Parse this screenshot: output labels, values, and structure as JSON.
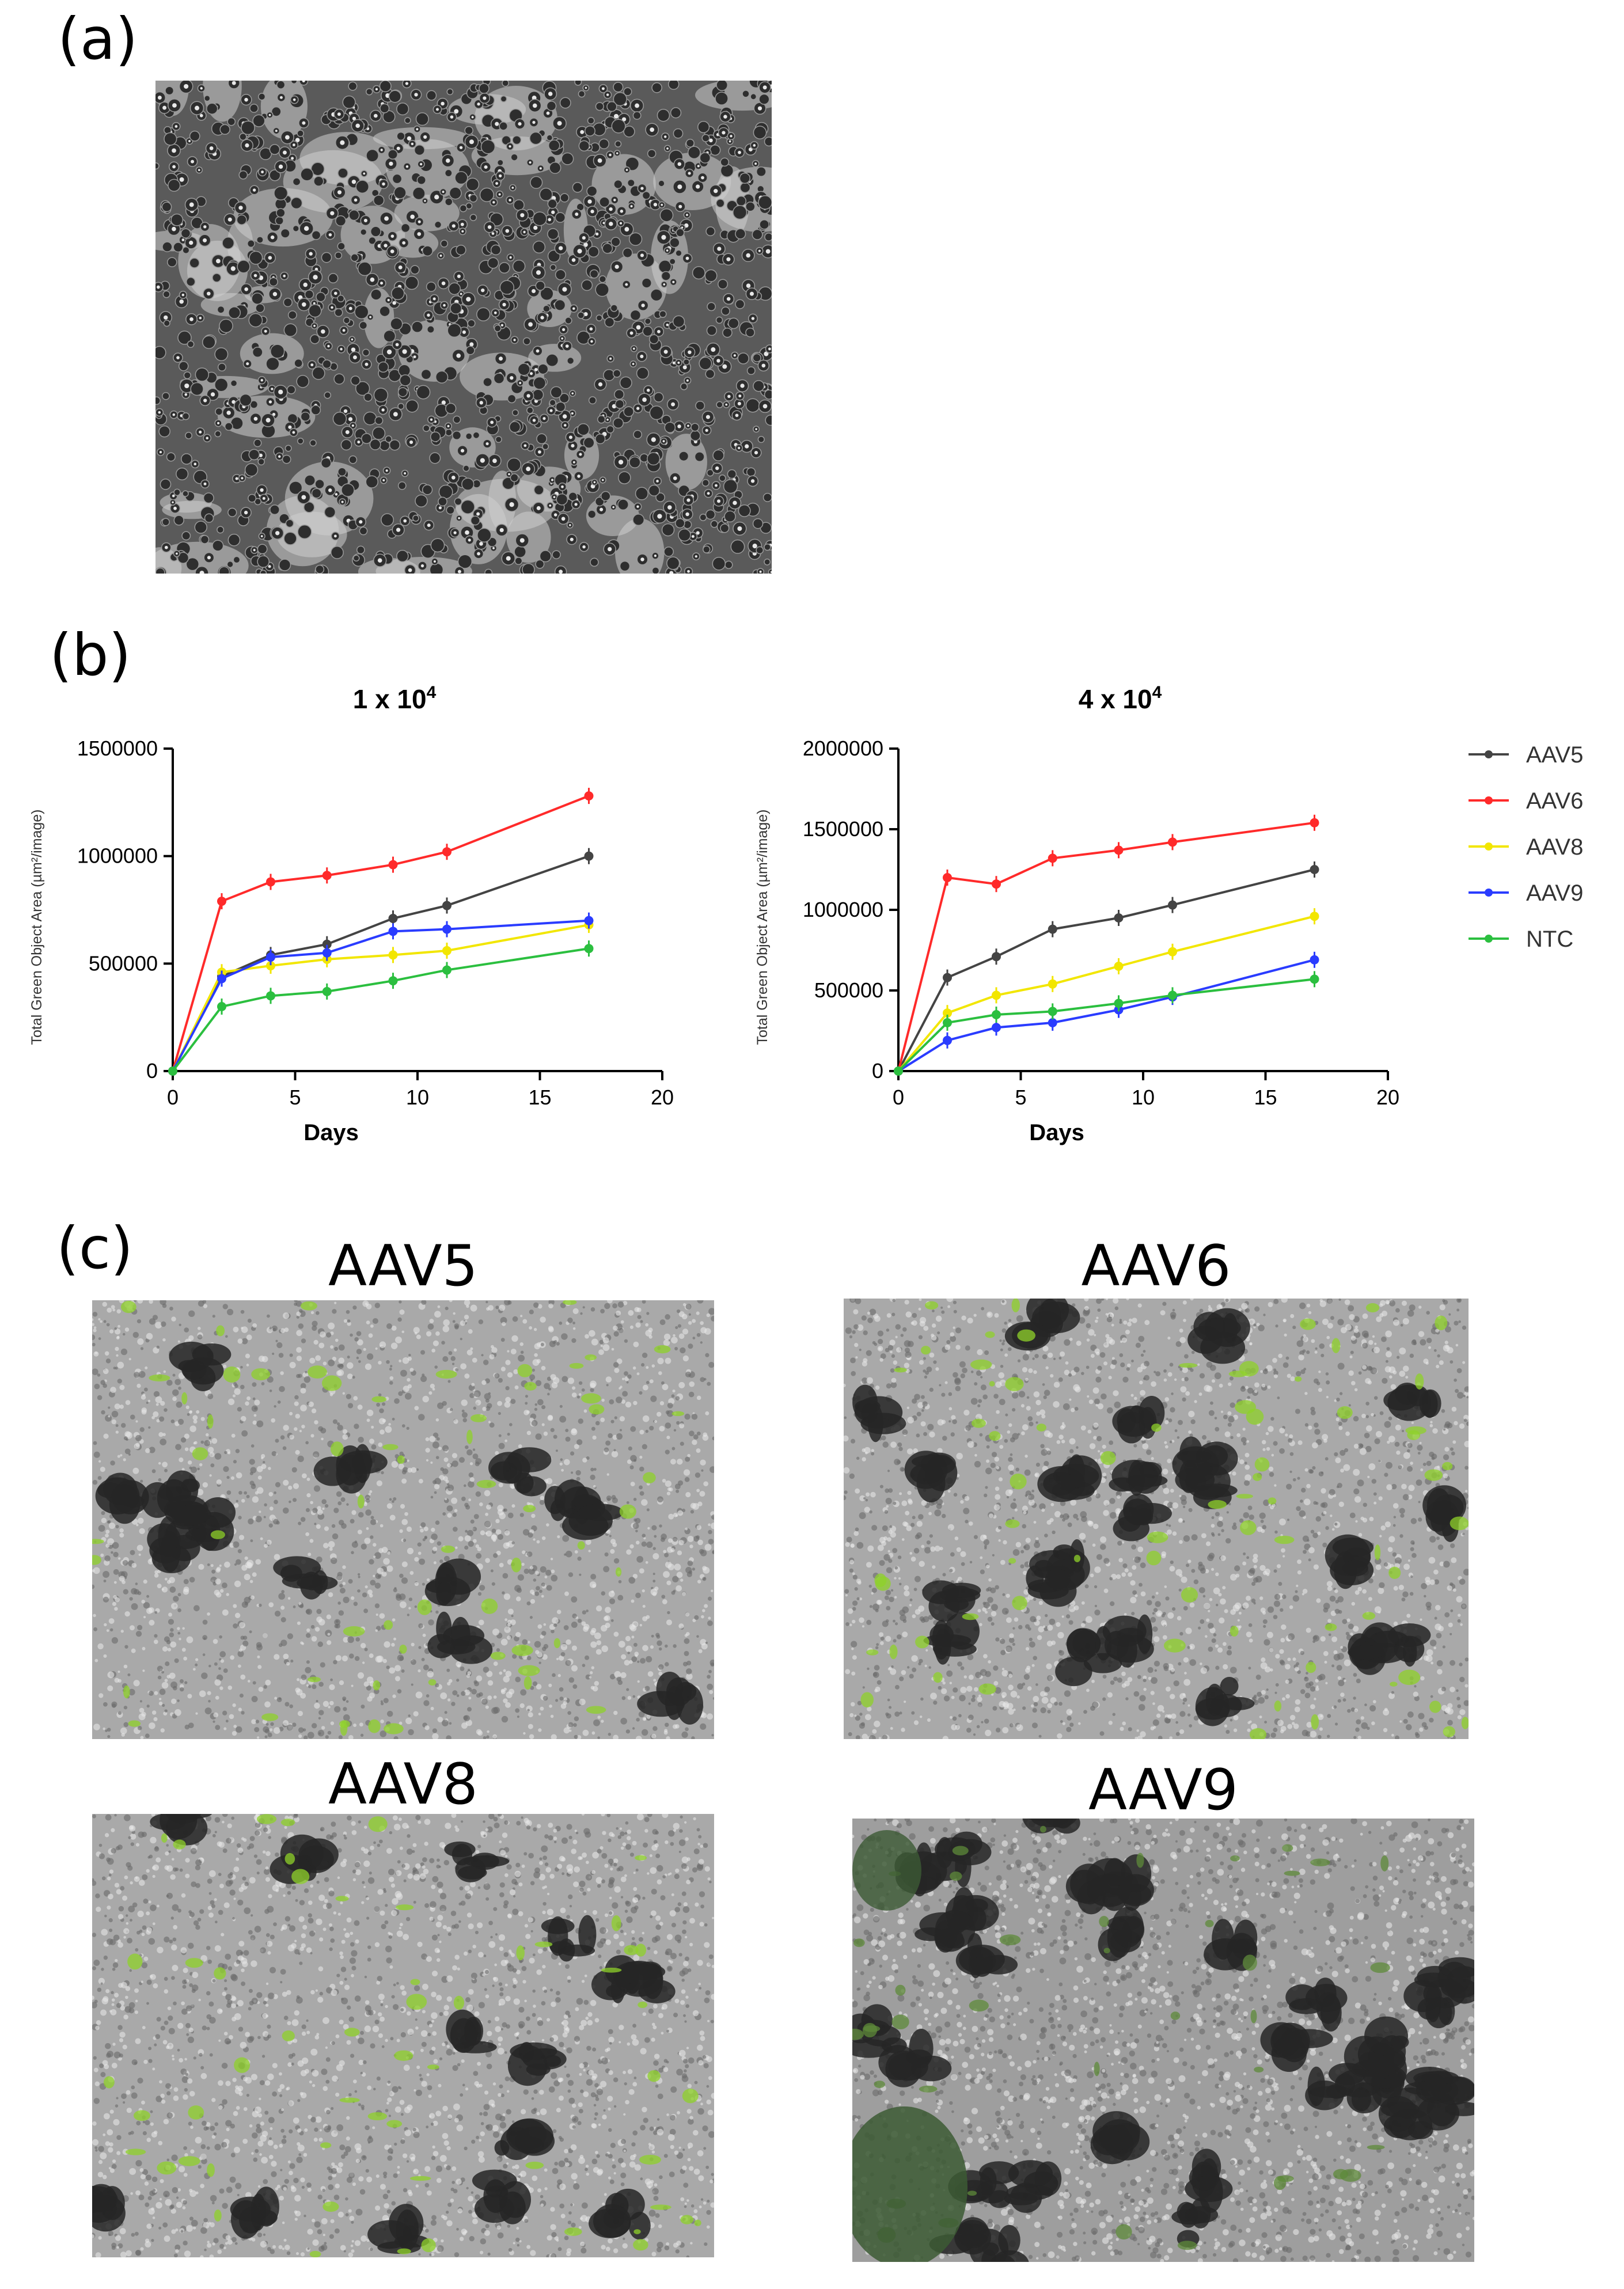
{
  "figure": {
    "panel_a_label": "(a)",
    "panel_b_label": "(b)",
    "panel_c_label": "(c)"
  },
  "colors": {
    "AAV5": "#444444",
    "AAV6": "#ff2a2a",
    "AAV8": "#f2e600",
    "AAV9": "#2a3cff",
    "NTC": "#2bbf3f"
  },
  "micrographs": [
    {
      "title": "AAV5"
    },
    {
      "title": "AAV6"
    },
    {
      "title": "AAV8"
    },
    {
      "title": "AAV9"
    }
  ],
  "chart_data": [
    {
      "type": "line",
      "title_base": "1 x 10",
      "title_exp": "4",
      "xlabel": "Days",
      "ylabel": "Total Green Object Area (µm²/image)",
      "xlim": [
        0,
        20
      ],
      "ylim": [
        0,
        1500000
      ],
      "x_ticks": [
        "0",
        "5",
        "10",
        "15",
        "20"
      ],
      "y_ticks": [
        "0",
        "500000",
        "1000000",
        "1500000"
      ],
      "x": [
        0,
        2,
        4,
        6.3,
        9,
        11.2,
        17
      ],
      "series": [
        {
          "name": "AAV5",
          "values": [
            0,
            440000,
            540000,
            590000,
            710000,
            770000,
            1000000
          ]
        },
        {
          "name": "AAV6",
          "values": [
            0,
            790000,
            880000,
            910000,
            960000,
            1020000,
            1280000
          ]
        },
        {
          "name": "AAV8",
          "values": [
            0,
            460000,
            490000,
            520000,
            540000,
            560000,
            680000
          ]
        },
        {
          "name": "AAV9",
          "values": [
            0,
            430000,
            530000,
            550000,
            650000,
            660000,
            700000
          ]
        },
        {
          "name": "NTC",
          "values": [
            0,
            300000,
            350000,
            370000,
            420000,
            470000,
            570000
          ]
        }
      ]
    },
    {
      "type": "line",
      "title_base": "4 x 10",
      "title_exp": "4",
      "xlabel": "Days",
      "ylabel": "Total Green Object Area (µm²/image)",
      "xlim": [
        0,
        20
      ],
      "ylim": [
        0,
        2000000
      ],
      "x_ticks": [
        "0",
        "5",
        "10",
        "15",
        "20"
      ],
      "y_ticks": [
        "0",
        "500000",
        "1000000",
        "1500000",
        "2000000"
      ],
      "x": [
        0,
        2,
        4,
        6.3,
        9,
        11.2,
        17
      ],
      "series": [
        {
          "name": "AAV5",
          "values": [
            0,
            580000,
            710000,
            880000,
            950000,
            1030000,
            1250000
          ]
        },
        {
          "name": "AAV6",
          "values": [
            0,
            1200000,
            1160000,
            1320000,
            1370000,
            1420000,
            1540000
          ]
        },
        {
          "name": "AAV8",
          "values": [
            0,
            360000,
            470000,
            540000,
            650000,
            740000,
            960000
          ]
        },
        {
          "name": "AAV9",
          "values": [
            0,
            190000,
            270000,
            300000,
            380000,
            460000,
            690000
          ]
        },
        {
          "name": "NTC",
          "values": [
            0,
            300000,
            350000,
            370000,
            420000,
            470000,
            570000
          ]
        }
      ]
    }
  ],
  "legend": [
    "AAV5",
    "AAV6",
    "AAV8",
    "AAV9",
    "NTC"
  ]
}
